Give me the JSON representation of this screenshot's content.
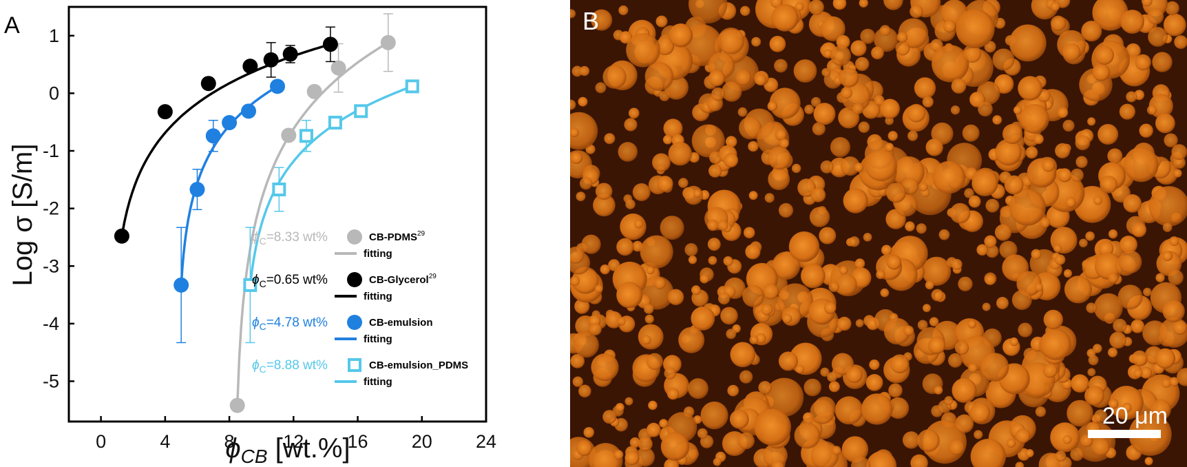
{
  "panel_a": {
    "letter": "A"
  },
  "panel_b": {
    "letter": "B",
    "scale_bar_label": "20 μm"
  },
  "chart_data": {
    "type": "scatter",
    "title": "",
    "xlabel": "[wt.%]",
    "xlabel_symbol": "ϕ",
    "xlabel_sub": "CB",
    "ylabel": "Log σ [S/m]",
    "xlim": [
      -2,
      24
    ],
    "ylim": [
      -5.7,
      1.5
    ],
    "xticks": [
      0,
      4,
      8,
      12,
      16,
      20,
      24
    ],
    "yticks": [
      1,
      0,
      -1,
      -2,
      -3,
      -4,
      -5
    ],
    "xtick_labels": [
      "0",
      "4",
      "8",
      "12",
      "16",
      "20",
      "24"
    ],
    "ytick_labels": [
      "1",
      "0",
      "-1",
      "-2",
      "-3",
      "-4",
      "-5"
    ],
    "grid": false,
    "legend_position": "bottom-right",
    "series": [
      {
        "name": "CB-PDMS",
        "name_sup": "29",
        "threshold_label": "=8.33 wt%",
        "phi_c": 8.33,
        "color": "#b8b8b8",
        "marker": "filled-circle",
        "fit_label": "fitting",
        "x": [
          8.5,
          11.7,
          13.3,
          14.8,
          17.9
        ],
        "y": [
          -5.42,
          -0.73,
          0.03,
          0.44,
          0.88
        ],
        "err": [
          0,
          0,
          0,
          0.42,
          0.5
        ]
      },
      {
        "name": "CB-Glycerol",
        "name_sup": "29",
        "threshold_label": "=0.65 wt%",
        "phi_c": 0.65,
        "color": "#000000",
        "marker": "filled-circle",
        "fit_label": "fitting",
        "x": [
          1.3,
          4.0,
          6.7,
          9.3,
          10.6,
          11.8,
          14.3
        ],
        "y": [
          -2.48,
          -0.32,
          0.17,
          0.47,
          0.58,
          0.68,
          0.85
        ],
        "err": [
          0,
          0,
          0,
          0,
          0.3,
          0.15,
          0.3
        ]
      },
      {
        "name": "CB-emulsion",
        "threshold_label": "=4.78 wt%",
        "phi_c": 4.78,
        "color": "#1f80e0",
        "marker": "filled-circle",
        "fit_label": "fitting",
        "x": [
          5.0,
          6.0,
          7.0,
          8.0,
          9.2,
          11.0
        ],
        "y": [
          -3.33,
          -1.67,
          -0.74,
          -0.51,
          -0.31,
          0.12
        ],
        "err": [
          1.0,
          0.35,
          0.27,
          0,
          0,
          0
        ]
      },
      {
        "name": "CB-emulsion_PDMS",
        "threshold_label": "=8.88 wt%",
        "phi_c": 8.88,
        "color": "#55c8ea",
        "marker": "open-square",
        "fit_label": "fitting",
        "x": [
          9.3,
          11.1,
          12.8,
          14.6,
          16.2,
          19.4
        ],
        "y": [
          -3.33,
          -1.67,
          -0.74,
          -0.51,
          -0.31,
          0.12
        ],
        "err": [
          1.0,
          0.38,
          0.27,
          0,
          0,
          0
        ]
      }
    ]
  }
}
